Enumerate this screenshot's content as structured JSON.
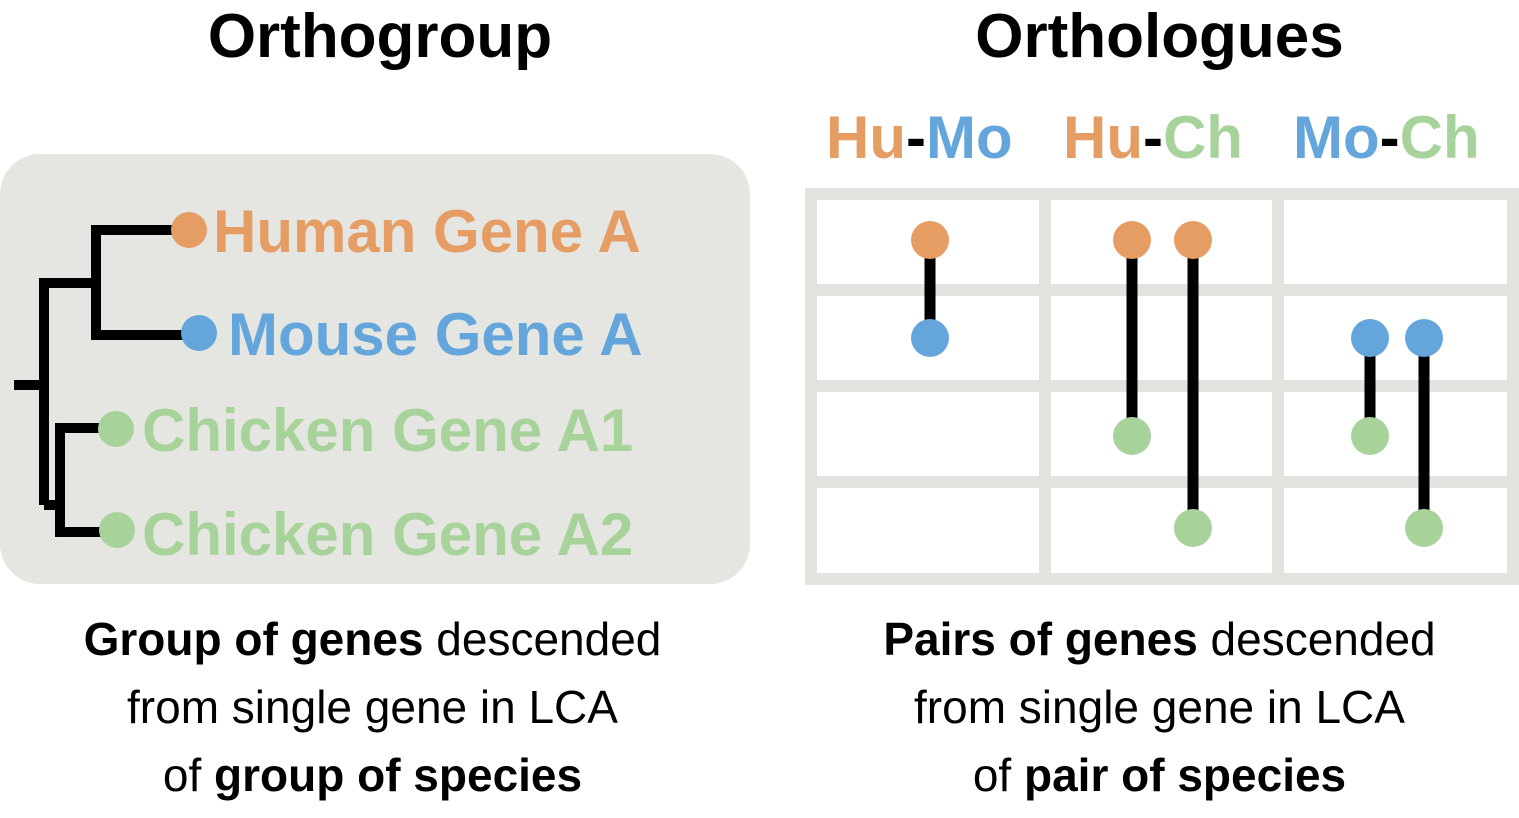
{
  "colors": {
    "human": "#e59d63",
    "mouse": "#64a6dc",
    "chicken": "#a7d39b",
    "panel_bg": "#e5e5e1",
    "grid": "#e2e2de",
    "branch": "#000000"
  },
  "orthogroup": {
    "title": "Orthogroup",
    "genes": [
      {
        "label": "Human Gene A",
        "species": "human"
      },
      {
        "label": "Mouse Gene A",
        "species": "mouse"
      },
      {
        "label": "Chicken Gene A1",
        "species": "chicken"
      },
      {
        "label": "Chicken Gene A2",
        "species": "chicken"
      }
    ],
    "caption": {
      "line1_bold": "Group of genes",
      "line1_rest": " descended",
      "line2": "from single gene in LCA",
      "line3_pre": "of ",
      "line3_bold": "group of species"
    }
  },
  "orthologues": {
    "title": "Orthologues",
    "column_headers": [
      {
        "a": "Hu",
        "sep": "-",
        "b": "Mo"
      },
      {
        "a": "Hu",
        "sep": "-",
        "b": "Ch"
      },
      {
        "a": "Mo",
        "sep": "-",
        "b": "Ch"
      }
    ],
    "caption": {
      "line1_bold": "Pairs of genes",
      "line1_rest": " descended",
      "line2": "from single gene in LCA",
      "line3_pre": "of ",
      "line3_bold": "pair of species"
    }
  }
}
